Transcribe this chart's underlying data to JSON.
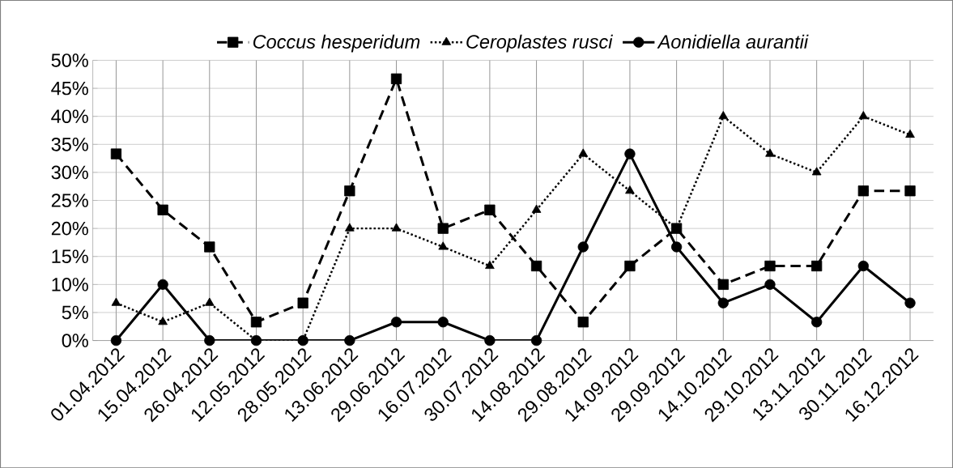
{
  "chart_data": {
    "type": "line",
    "categories": [
      "01.04.2012",
      "15.04.2012",
      "26.04.2012",
      "12.05.2012",
      "28.05.2012",
      "13.06.2012",
      "29.06.2012",
      "16.07.2012",
      "30.07.2012",
      "14.08.2012",
      "29.08.2012",
      "14.09.2012",
      "29.09.2012",
      "14.10.2012",
      "29.10.2012",
      "13.11.2012",
      "30.11.2012",
      "16.12.2012"
    ],
    "series": [
      {
        "name": "Coccus hesperidum",
        "color": "#000000",
        "marker": "square",
        "line_style": "dashed",
        "values": [
          33.3,
          23.3,
          16.7,
          3.3,
          6.7,
          26.7,
          46.7,
          20,
          23.3,
          13.3,
          3.3,
          13.3,
          20,
          10,
          13.3,
          13.3,
          26.7,
          26.7
        ]
      },
      {
        "name": "Ceroplastes rusci",
        "color": "#000000",
        "marker": "triangle",
        "line_style": "dotted",
        "values": [
          6.7,
          3.3,
          6.7,
          0,
          0,
          20,
          20,
          16.7,
          13.3,
          23.3,
          33.3,
          26.7,
          20,
          40,
          33.3,
          30,
          40,
          36.7
        ]
      },
      {
        "name": "Aonidiella aurantii",
        "color": "#000000",
        "marker": "circle",
        "line_style": "solid",
        "values": [
          0,
          10,
          0,
          0,
          0,
          0,
          3.3,
          3.3,
          0,
          0,
          16.7,
          33.3,
          16.7,
          6.7,
          10,
          3.3,
          13.3,
          6.7
        ]
      }
    ],
    "ylim": [
      0,
      50
    ],
    "yticks": [
      {
        "value": 0,
        "label": "0%"
      },
      {
        "value": 5,
        "label": "5%"
      },
      {
        "value": 10,
        "label": "10%"
      },
      {
        "value": 15,
        "label": "15%"
      },
      {
        "value": 20,
        "label": "20%"
      },
      {
        "value": 25,
        "label": "25%"
      },
      {
        "value": 30,
        "label": "30%"
      },
      {
        "value": 35,
        "label": "35%"
      },
      {
        "value": 40,
        "label": "40%"
      },
      {
        "value": 45,
        "label": "45%"
      },
      {
        "value": 50,
        "label": "50%"
      }
    ],
    "grid": true,
    "legend": "top"
  }
}
